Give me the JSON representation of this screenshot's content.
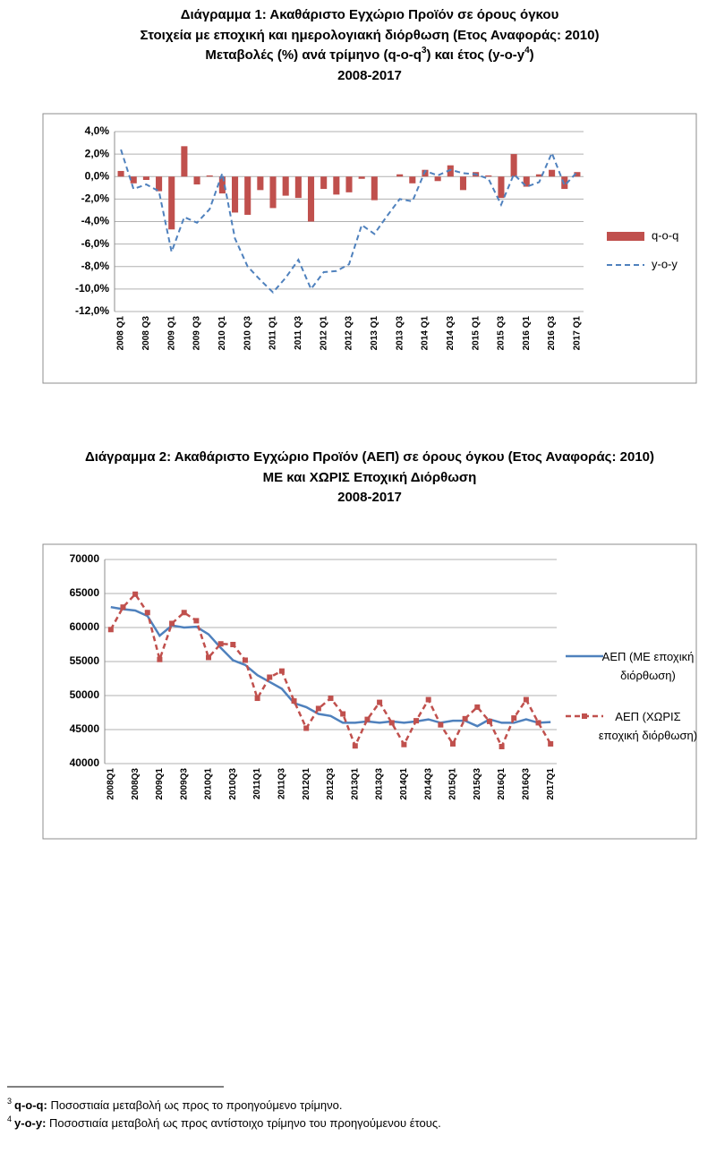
{
  "chart_data": [
    {
      "type": "bar",
      "title": [
        "Διάγραμμα 1: Ακαθάριστο Εγχώριο Προϊόν σε όρους όγκου",
        "Στοιχεία με εποχική και ημερολογιακή διόρθωση (Ετος Αναφοράς: 2010)",
        [
          "Μεταβολές (%) ανά τρίμηνο (q-o-q",
          "3",
          ") και έτος (y-o-y",
          "4",
          ")"
        ],
        "2008-2017"
      ],
      "categories": [
        "2008 Q1",
        null,
        "2008 Q3",
        null,
        "2009 Q1",
        null,
        "2009 Q3",
        null,
        "2010 Q1",
        null,
        "2010 Q3",
        null,
        "2011 Q1",
        null,
        "2011 Q3",
        null,
        "2012 Q1",
        null,
        "2012 Q3",
        null,
        "2013 Q1",
        null,
        "2013 Q3",
        null,
        "2014 Q1",
        null,
        "2014 Q3",
        null,
        "2015 Q1",
        null,
        "2015 Q3",
        null,
        "2016 Q1",
        null,
        "2016 Q3",
        null,
        "2017 Q1"
      ],
      "series": [
        {
          "name": "q-o-q",
          "type": "bar",
          "color": "#c0504d",
          "values": [
            0.5,
            -0.6,
            -0.3,
            -1.3,
            -4.7,
            2.7,
            -0.7,
            0.1,
            -1.5,
            -3.2,
            -3.4,
            -1.2,
            -2.8,
            -1.7,
            -1.9,
            -4.0,
            -1.1,
            -1.6,
            -1.4,
            -0.2,
            -2.1,
            0.0,
            0.2,
            -0.6,
            0.6,
            -0.4,
            1.0,
            -1.2,
            0.4,
            0.1,
            -1.9,
            2.0,
            -0.9,
            0.2,
            0.6,
            -1.1,
            0.4
          ]
        },
        {
          "name": "y-o-y",
          "type": "line",
          "dash": true,
          "color": "#4f81bd",
          "values": [
            2.4,
            -1.1,
            -0.7,
            -1.3,
            -6.7,
            -3.6,
            -4.1,
            -2.9,
            0.3,
            -5.5,
            -8.0,
            -9.2,
            -10.3,
            -9.0,
            -7.4,
            -10.0,
            -8.5,
            -8.4,
            -7.8,
            -4.3,
            -5.1,
            -3.5,
            -2.0,
            -2.2,
            0.5,
            0.1,
            0.6,
            0.3,
            0.2,
            -0.2,
            -2.5,
            0.2,
            -0.9,
            -0.5,
            2.1,
            -0.8,
            0.4
          ]
        }
      ],
      "ylim": [
        -12,
        4
      ],
      "yticks": [
        {
          "value": 4,
          "label": "4,0%"
        },
        {
          "value": 2,
          "label": "2,0%"
        },
        {
          "value": 0,
          "label": "0,0%"
        },
        {
          "value": -2,
          "label": "-2,0%"
        },
        {
          "value": -4,
          "label": "-4,0%"
        },
        {
          "value": -6,
          "label": "-6,0%"
        },
        {
          "value": -8,
          "label": "-8,0%"
        },
        {
          "value": -10,
          "label": "-10,0%"
        },
        {
          "value": -12,
          "label": "-12,0%"
        }
      ],
      "grid": true,
      "legend": "right"
    },
    {
      "type": "line",
      "title": [
        "Διάγραμμα 2: Ακαθάριστο Εγχώριο Προϊόν (ΑΕΠ) σε όρους όγκου (Ετος Αναφοράς: 2010)",
        "ΜΕ και ΧΩΡΙΣ Εποχική Διόρθωση",
        "2008-2017"
      ],
      "categories": [
        "2008Q1",
        null,
        "2008Q3",
        null,
        "2009Q1",
        null,
        "2009Q3",
        null,
        "2010Q1",
        null,
        "2010Q3",
        null,
        "2011Q1",
        null,
        "2011Q3",
        null,
        "2012Q1",
        null,
        "2012Q3",
        null,
        "2013Q1",
        null,
        "2013Q3",
        null,
        "2014Q1",
        null,
        "2014Q3",
        null,
        "2015Q1",
        null,
        "2015Q3",
        null,
        "2016Q1",
        null,
        "2016Q3",
        null,
        "2017Q1"
      ],
      "series": [
        {
          "name": "ΑΕΠ (ΜΕ εποχική διόρθωση)",
          "type": "line",
          "color": "#4f81bd",
          "values": [
            63000,
            62700,
            62500,
            61700,
            58800,
            60300,
            60000,
            60100,
            59000,
            57000,
            55200,
            54500,
            53000,
            52000,
            51000,
            48900,
            48300,
            47300,
            47000,
            46000,
            46000,
            46200,
            46000,
            46200,
            46000,
            46200,
            46500,
            46000,
            46300,
            46300,
            45500,
            46500,
            46000,
            46000,
            46500,
            46000,
            46100
          ]
        },
        {
          "name": "ΑΕΠ (ΧΩΡΙΣ εποχική διόρθωση)",
          "type": "line",
          "dash": true,
          "marker": "square",
          "color": "#c0504d",
          "values": [
            59700,
            63000,
            64900,
            62200,
            55300,
            60600,
            62200,
            61000,
            55600,
            57600,
            57500,
            55200,
            49600,
            52700,
            53600,
            49200,
            45200,
            48100,
            49600,
            47300,
            42600,
            46500,
            49000,
            46000,
            42800,
            46300,
            49400,
            45700,
            42900,
            46600,
            48300,
            46200,
            42500,
            46700,
            49400,
            46000,
            42900
          ]
        }
      ],
      "ylim": [
        40000,
        70000
      ],
      "yticks": [
        40000,
        45000,
        50000,
        55000,
        60000,
        65000,
        70000
      ],
      "grid": true,
      "legend": "right"
    }
  ],
  "footnotes": [
    {
      "mark": "3",
      "term": "q-o-q:",
      "text": " Ποσοστιαία μεταβολή ως προς το προηγούμενο τρίμηνο."
    },
    {
      "mark": "4",
      "term": "y-o-y:",
      "text": " Ποσοστιαία μεταβολή ως προς αντίστοιχο τρίμηνο του προηγούμενου έτους."
    }
  ]
}
